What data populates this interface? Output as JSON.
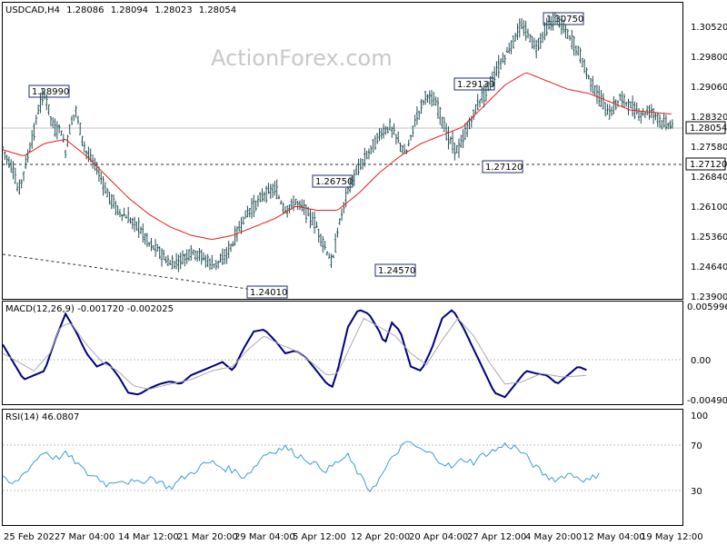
{
  "colors": {
    "candle": "#1f4e52",
    "ma": "#e81e1e",
    "macd": "#000080",
    "signal": "#aaaaaa",
    "rsi": "#3d9ed6",
    "grid": "#c0c0c0",
    "frame": "#000000"
  },
  "chart_data": [
    {
      "type": "candlestick",
      "title": "USDCAD,H4",
      "ohlc": {
        "open": "1.28086",
        "high": "1.28094",
        "low": "1.28023",
        "close": "1.28054"
      },
      "watermark": "ActionForex.com",
      "y_ticks": [
        "1.30520",
        "1.29800",
        "1.29060",
        "1.28320",
        "1.27580",
        "1.26840",
        "1.26100",
        "1.25360",
        "1.24640",
        "1.23900"
      ],
      "ylim": [
        1.239,
        1.3095
      ],
      "x_ticks": [
        "25 Feb 2022",
        "7 Mar 04:00",
        "14 Mar 12:00",
        "21 Mar 20:00",
        "29 Mar 04:00",
        "5 Apr 12:00",
        "12 Apr 20:00",
        "20 Apr 04:00",
        "27 Apr 12:00",
        "4 May 20:00",
        "12 May 04:00",
        "19 May 12:00"
      ],
      "price_keypoints": [
        [
          0,
          1.275
        ],
        [
          5,
          1.272
        ],
        [
          10,
          1.27
        ],
        [
          15,
          1.264
        ],
        [
          20,
          1.269
        ],
        [
          25,
          1.274
        ],
        [
          30,
          1.279
        ],
        [
          35,
          1.285
        ],
        [
          40,
          1.288
        ],
        [
          45,
          1.283
        ],
        [
          50,
          1.279
        ],
        [
          55,
          1.28
        ],
        [
          60,
          1.274
        ],
        [
          65,
          1.281
        ],
        [
          70,
          1.284
        ],
        [
          75,
          1.278
        ],
        [
          80,
          1.274
        ],
        [
          90,
          1.27
        ],
        [
          100,
          1.264
        ],
        [
          110,
          1.26
        ],
        [
          120,
          1.258
        ],
        [
          130,
          1.256
        ],
        [
          140,
          1.252
        ],
        [
          150,
          1.25
        ],
        [
          160,
          1.247
        ],
        [
          170,
          1.248
        ],
        [
          180,
          1.25
        ],
        [
          190,
          1.249
        ],
        [
          200,
          1.247
        ],
        [
          210,
          1.248
        ],
        [
          220,
          1.252
        ],
        [
          230,
          1.258
        ],
        [
          240,
          1.261
        ],
        [
          250,
          1.264
        ],
        [
          260,
          1.265
        ],
        [
          270,
          1.26
        ],
        [
          280,
          1.262
        ],
        [
          290,
          1.26
        ],
        [
          300,
          1.256
        ],
        [
          310,
          1.25
        ],
        [
          315,
          1.247
        ],
        [
          320,
          1.255
        ],
        [
          330,
          1.265
        ],
        [
          340,
          1.27
        ],
        [
          350,
          1.274
        ],
        [
          360,
          1.278
        ],
        [
          370,
          1.28
        ],
        [
          380,
          1.276
        ],
        [
          385,
          1.273
        ],
        [
          395,
          1.282
        ],
        [
          405,
          1.288
        ],
        [
          415,
          1.285
        ],
        [
          425,
          1.278
        ],
        [
          435,
          1.274
        ],
        [
          445,
          1.28
        ],
        [
          455,
          1.286
        ],
        [
          465,
          1.29
        ],
        [
          475,
          1.295
        ],
        [
          485,
          1.299
        ],
        [
          495,
          1.304
        ],
        [
          500,
          1.303
        ],
        [
          510,
          1.299
        ],
        [
          520,
          1.304
        ],
        [
          530,
          1.306
        ],
        [
          540,
          1.302
        ],
        [
          550,
          1.298
        ],
        [
          560,
          1.292
        ],
        [
          570,
          1.287
        ],
        [
          580,
          1.283
        ],
        [
          590,
          1.287
        ],
        [
          600,
          1.285
        ],
        [
          610,
          1.283
        ],
        [
          620,
          1.284
        ],
        [
          630,
          1.281
        ],
        [
          641,
          1.2805
        ]
      ],
      "ma_keypoints": [
        [
          0,
          1.2745
        ],
        [
          20,
          1.273
        ],
        [
          40,
          1.276
        ],
        [
          60,
          1.277
        ],
        [
          80,
          1.273
        ],
        [
          100,
          1.268
        ],
        [
          120,
          1.263
        ],
        [
          140,
          1.259
        ],
        [
          160,
          1.256
        ],
        [
          180,
          1.254
        ],
        [
          200,
          1.253
        ],
        [
          220,
          1.254
        ],
        [
          240,
          1.256
        ],
        [
          260,
          1.258
        ],
        [
          280,
          1.261
        ],
        [
          300,
          1.26
        ],
        [
          320,
          1.26
        ],
        [
          340,
          1.264
        ],
        [
          360,
          1.269
        ],
        [
          380,
          1.273
        ],
        [
          400,
          1.276
        ],
        [
          420,
          1.278
        ],
        [
          440,
          1.28
        ],
        [
          460,
          1.285
        ],
        [
          480,
          1.29
        ],
        [
          500,
          1.293
        ],
        [
          520,
          1.291
        ],
        [
          540,
          1.289
        ],
        [
          560,
          1.288
        ],
        [
          580,
          1.286
        ],
        [
          600,
          1.284
        ],
        [
          641,
          1.283
        ]
      ],
      "annotations": [
        {
          "label": "1.28990",
          "value": 1.2899
        },
        {
          "label": "1.26750",
          "value": 1.2675
        },
        {
          "label": "1.24010",
          "value": 1.2401
        },
        {
          "label": "1.24570",
          "value": 1.2457
        },
        {
          "label": "1.29130",
          "value": 1.2913
        },
        {
          "label": "1.27120",
          "value": 1.2712
        },
        {
          "label": "1.30750",
          "value": 1.3075
        }
      ],
      "horizontal_level": 1.2712,
      "current_price": {
        "label": "1.28054",
        "value": 1.28054
      },
      "level_label": "1.27120"
    },
    {
      "type": "line",
      "title": "MACD(12,26,9) -0.001720 -0.002025",
      "y_ticks": [
        "0.005996",
        "0.00",
        "-0.004901"
      ],
      "ylim": [
        -0.0052,
        0.0063
      ],
      "series": [
        {
          "color_key": "macd",
          "keypoints": [
            [
              0,
              0.0015
            ],
            [
              10,
              -0.0005
            ],
            [
              20,
              -0.0025
            ],
            [
              30,
              -0.002
            ],
            [
              40,
              -0.0015
            ],
            [
              50,
              0.002
            ],
            [
              60,
              0.005
            ],
            [
              70,
              0.003
            ],
            [
              80,
              0.0005
            ],
            [
              90,
              -0.001
            ],
            [
              100,
              -0.0005
            ],
            [
              110,
              -0.002
            ],
            [
              120,
              -0.004
            ],
            [
              130,
              -0.0042
            ],
            [
              140,
              -0.0035
            ],
            [
              150,
              -0.003
            ],
            [
              160,
              -0.0027
            ],
            [
              170,
              -0.003
            ],
            [
              180,
              -0.002
            ],
            [
              190,
              -0.0015
            ],
            [
              200,
              -0.001
            ],
            [
              210,
              -0.0005
            ],
            [
              220,
              -0.0015
            ],
            [
              230,
              0.001
            ],
            [
              240,
              0.003
            ],
            [
              250,
              0.0032
            ],
            [
              260,
              0.002
            ],
            [
              270,
              0.0005
            ],
            [
              280,
              0.0008
            ],
            [
              290,
              0.0
            ],
            [
              300,
              -0.0015
            ],
            [
              310,
              -0.003
            ],
            [
              315,
              -0.0033
            ],
            [
              320,
              -0.0015
            ],
            [
              330,
              0.0035
            ],
            [
              340,
              0.0055
            ],
            [
              350,
              0.005
            ],
            [
              360,
              0.003
            ],
            [
              365,
              0.0015
            ],
            [
              372,
              0.004
            ],
            [
              380,
              0.003
            ],
            [
              390,
              -0.001
            ],
            [
              400,
              -0.0015
            ],
            [
              410,
              0.001
            ],
            [
              420,
              0.0045
            ],
            [
              430,
              0.0055
            ],
            [
              440,
              0.0035
            ],
            [
              450,
              0.001
            ],
            [
              460,
              -0.0015
            ],
            [
              470,
              -0.004
            ],
            [
              480,
              -0.0045
            ],
            [
              490,
              -0.003
            ],
            [
              500,
              -0.0015
            ],
            [
              510,
              -0.0018
            ],
            [
              520,
              -0.002
            ],
            [
              530,
              -0.003
            ],
            [
              540,
              -0.002
            ],
            [
              550,
              -0.001
            ],
            [
              560,
              -0.0015
            ]
          ]
        },
        {
          "color_key": "signal",
          "keypoints": [
            [
              0,
              0.0005
            ],
            [
              15,
              -0.0005
            ],
            [
              30,
              -0.0015
            ],
            [
              45,
              0.0005
            ],
            [
              55,
              0.0035
            ],
            [
              65,
              0.004
            ],
            [
              80,
              0.0015
            ],
            [
              95,
              -0.0005
            ],
            [
              110,
              -0.0015
            ],
            [
              125,
              -0.0032
            ],
            [
              140,
              -0.0036
            ],
            [
              160,
              -0.003
            ],
            [
              180,
              -0.0025
            ],
            [
              200,
              -0.0015
            ],
            [
              220,
              -0.001
            ],
            [
              235,
              0.001
            ],
            [
              250,
              0.0025
            ],
            [
              265,
              0.0015
            ],
            [
              280,
              0.0008
            ],
            [
              295,
              -0.0005
            ],
            [
              310,
              -0.002
            ],
            [
              320,
              -0.0018
            ],
            [
              335,
              0.002
            ],
            [
              345,
              0.0045
            ],
            [
              360,
              0.0035
            ],
            [
              375,
              0.0025
            ],
            [
              390,
              0.0005
            ],
            [
              405,
              -0.0008
            ],
            [
              420,
              0.002
            ],
            [
              435,
              0.0045
            ],
            [
              450,
              0.0025
            ],
            [
              465,
              -0.0005
            ],
            [
              480,
              -0.003
            ],
            [
              495,
              -0.0028
            ],
            [
              515,
              -0.0018
            ],
            [
              535,
              -0.0022
            ],
            [
              560,
              -0.002
            ]
          ]
        }
      ]
    },
    {
      "type": "line",
      "title": "RSI(14) 46.0807",
      "y_ticks": [
        "100",
        "70",
        "30"
      ],
      "ylim": [
        0,
        100
      ],
      "levels": [
        70,
        30
      ],
      "series": [
        {
          "color_key": "rsi",
          "keypoints": [
            [
              0,
              40
            ],
            [
              10,
              35
            ],
            [
              20,
              45
            ],
            [
              30,
              55
            ],
            [
              40,
              65
            ],
            [
              50,
              58
            ],
            [
              60,
              62
            ],
            [
              70,
              55
            ],
            [
              80,
              45
            ],
            [
              90,
              42
            ],
            [
              100,
              35
            ],
            [
              110,
              40
            ],
            [
              120,
              38
            ],
            [
              130,
              36
            ],
            [
              140,
              42
            ],
            [
              150,
              38
            ],
            [
              160,
              32
            ],
            [
              170,
              40
            ],
            [
              180,
              45
            ],
            [
              190,
              52
            ],
            [
              200,
              55
            ],
            [
              210,
              50
            ],
            [
              220,
              48
            ],
            [
              230,
              42
            ],
            [
              240,
              50
            ],
            [
              250,
              62
            ],
            [
              260,
              65
            ],
            [
              270,
              68
            ],
            [
              280,
              62
            ],
            [
              290,
              58
            ],
            [
              300,
              52
            ],
            [
              310,
              48
            ],
            [
              320,
              55
            ],
            [
              330,
              60
            ],
            [
              340,
              45
            ],
            [
              350,
              30
            ],
            [
              360,
              40
            ],
            [
              370,
              55
            ],
            [
              380,
              68
            ],
            [
              390,
              72
            ],
            [
              400,
              65
            ],
            [
              410,
              62
            ],
            [
              420,
              55
            ],
            [
              430,
              50
            ],
            [
              440,
              58
            ],
            [
              450,
              55
            ],
            [
              460,
              62
            ],
            [
              470,
              65
            ],
            [
              480,
              70
            ],
            [
              490,
              68
            ],
            [
              500,
              60
            ],
            [
              510,
              50
            ],
            [
              520,
              42
            ],
            [
              530,
              40
            ],
            [
              540,
              45
            ],
            [
              550,
              42
            ],
            [
              560,
              38
            ],
            [
              570,
              46
            ]
          ]
        }
      ]
    }
  ]
}
